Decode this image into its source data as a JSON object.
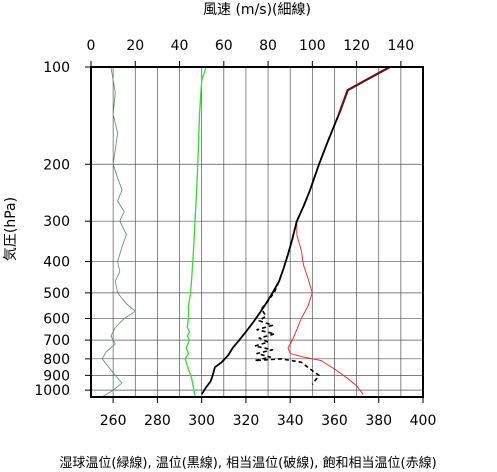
{
  "chart_data": {
    "type": "line",
    "title": "",
    "top_axis": {
      "label": "風速 (m/s)(細線)",
      "range": [
        0,
        150
      ],
      "ticks": [
        0,
        20,
        40,
        60,
        80,
        100,
        120,
        140
      ],
      "tick_labels": [
        "0",
        "20",
        "40",
        "60",
        "80",
        "100",
        "120",
        "140"
      ]
    },
    "bottom_axis": {
      "label": "湿球温位(緑線), 温位(黒線), 相当温位(破線), 飽和相当温位(赤線)",
      "range": [
        250,
        400
      ],
      "ticks": [
        260,
        280,
        300,
        320,
        340,
        360,
        380,
        400
      ],
      "tick_labels": [
        "260",
        "280",
        "300",
        "320",
        "340",
        "360",
        "380",
        "400"
      ]
    },
    "y_axis": {
      "label": "気圧(hPa)",
      "scale": "log",
      "range": [
        100,
        1050
      ],
      "ticks": [
        100,
        200,
        300,
        400,
        500,
        600,
        700,
        800,
        900,
        1000
      ],
      "tick_labels": [
        "100",
        "200",
        "300",
        "400",
        "500",
        "600",
        "700",
        "800",
        "900",
        "1000"
      ]
    },
    "grid": true,
    "colors": {
      "wind": "#5a8a6a",
      "wet_bulb": "#33dd33",
      "potential": "#000000",
      "equivalent": "#000000",
      "saturated": "#ee2222",
      "saturated_top": "#6b1010"
    },
    "series": [
      {
        "key": "wind",
        "axis": "top",
        "points": [
          [
            9,
            100
          ],
          [
            11,
            120
          ],
          [
            10,
            140
          ],
          [
            12,
            160
          ],
          [
            11,
            180
          ],
          [
            10,
            200
          ],
          [
            12,
            220
          ],
          [
            14,
            240
          ],
          [
            12,
            260
          ],
          [
            15,
            280
          ],
          [
            13,
            300
          ],
          [
            16,
            330
          ],
          [
            14,
            360
          ],
          [
            12,
            400
          ],
          [
            13,
            430
          ],
          [
            11,
            460
          ],
          [
            12,
            500
          ],
          [
            16,
            540
          ],
          [
            20,
            570
          ],
          [
            15,
            600
          ],
          [
            11,
            640
          ],
          [
            9,
            680
          ],
          [
            11,
            720
          ],
          [
            7,
            760
          ],
          [
            5,
            800
          ],
          [
            8,
            850
          ],
          [
            11,
            900
          ],
          [
            14,
            950
          ],
          [
            10,
            1000
          ],
          [
            5,
            1050
          ]
        ]
      },
      {
        "key": "wet_bulb",
        "axis": "bottom",
        "points": [
          [
            302,
            100
          ],
          [
            300,
            110
          ],
          [
            299,
            140
          ],
          [
            298.5,
            180
          ],
          [
            298,
            220
          ],
          [
            297.5,
            260
          ],
          [
            297,
            300
          ],
          [
            296.5,
            350
          ],
          [
            296,
            400
          ],
          [
            295.5,
            450
          ],
          [
            295,
            500
          ],
          [
            294,
            550
          ],
          [
            294,
            600
          ],
          [
            293.5,
            640
          ],
          [
            294.5,
            660
          ],
          [
            293.5,
            680
          ],
          [
            294.5,
            700
          ],
          [
            293,
            740
          ],
          [
            294,
            770
          ],
          [
            292.5,
            800
          ],
          [
            293.5,
            840
          ],
          [
            294.5,
            880
          ],
          [
            295.5,
            920
          ],
          [
            296,
            960
          ],
          [
            296.5,
            1000
          ],
          [
            297,
            1040
          ]
        ]
      },
      {
        "key": "potential",
        "axis": "bottom",
        "points": [
          [
            385,
            100
          ],
          [
            366,
            118
          ],
          [
            362,
            140
          ],
          [
            357,
            170
          ],
          [
            353,
            200
          ],
          [
            349,
            240
          ],
          [
            346,
            270
          ],
          [
            343,
            300
          ],
          [
            341,
            340
          ],
          [
            339,
            380
          ],
          [
            337,
            420
          ],
          [
            335,
            460
          ],
          [
            332,
            500
          ],
          [
            329,
            540
          ],
          [
            326,
            580
          ],
          [
            323,
            620
          ],
          [
            320,
            660
          ],
          [
            317,
            700
          ],
          [
            314,
            740
          ],
          [
            312,
            780
          ],
          [
            309,
            820
          ],
          [
            306,
            850
          ],
          [
            305,
            900
          ],
          [
            304,
            940
          ],
          [
            302,
            980
          ],
          [
            300,
            1030
          ]
        ]
      },
      {
        "key": "equivalent",
        "axis": "bottom",
        "points": [
          [
            385,
            100
          ],
          [
            366,
            118
          ],
          [
            362,
            140
          ],
          [
            357,
            170
          ],
          [
            353,
            200
          ],
          [
            349,
            240
          ],
          [
            346,
            270
          ],
          [
            343,
            300
          ],
          [
            341,
            340
          ],
          [
            339,
            380
          ],
          [
            337,
            420
          ],
          [
            335,
            460
          ],
          [
            333,
            495
          ],
          [
            330,
            530
          ],
          [
            327,
            560
          ],
          [
            329,
            590
          ],
          [
            326,
            610
          ],
          [
            332,
            630
          ],
          [
            325,
            650
          ],
          [
            333,
            670
          ],
          [
            326,
            690
          ],
          [
            330,
            710
          ],
          [
            324,
            730
          ],
          [
            332,
            750
          ],
          [
            325,
            770
          ],
          [
            331,
            790
          ],
          [
            324,
            810
          ],
          [
            336,
            800
          ],
          [
            345,
            820
          ],
          [
            349,
            860
          ],
          [
            353,
            900
          ],
          [
            350,
            960
          ]
        ]
      },
      {
        "key": "saturated",
        "axis": "bottom",
        "points": [
          [
            385,
            100
          ],
          [
            366,
            118
          ],
          [
            362,
            140
          ],
          [
            357,
            170
          ],
          [
            353,
            200
          ],
          [
            349,
            240
          ],
          [
            346,
            270
          ],
          [
            343,
            300
          ],
          [
            343,
            330
          ],
          [
            345,
            370
          ],
          [
            346,
            410
          ],
          [
            348,
            450
          ],
          [
            350,
            500
          ],
          [
            348,
            550
          ],
          [
            345,
            600
          ],
          [
            343,
            650
          ],
          [
            341,
            700
          ],
          [
            339,
            740
          ],
          [
            340,
            770
          ],
          [
            346,
            790
          ],
          [
            354,
            810
          ],
          [
            360,
            860
          ],
          [
            366,
            920
          ],
          [
            370,
            970
          ],
          [
            373,
            1030
          ]
        ]
      }
    ]
  }
}
